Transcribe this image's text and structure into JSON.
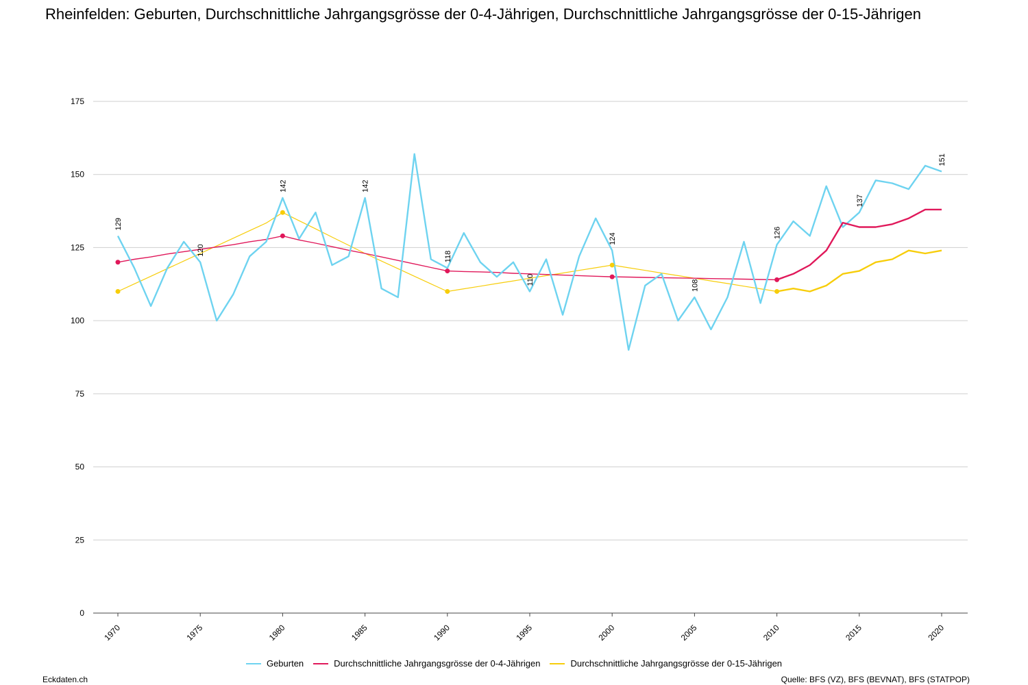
{
  "chart_data": {
    "type": "line",
    "title": "Rheinfelden: Geburten, Durchschnittliche Jahrgangsgrösse der 0-4-Jährigen, Durchschnittliche Jahrgangsgrösse der 0-15-Jährigen",
    "xlabel": "",
    "ylabel": "",
    "ylim": [
      0,
      175
    ],
    "yticks": [
      0,
      25,
      50,
      75,
      100,
      125,
      150,
      175
    ],
    "xticks": [
      1970,
      1975,
      1980,
      1985,
      1990,
      1995,
      2000,
      2005,
      2010,
      2015,
      2020
    ],
    "xlim": [
      1970,
      2020
    ],
    "grid": true,
    "legend_position": "bottom",
    "x": [
      1970,
      1971,
      1972,
      1973,
      1974,
      1975,
      1976,
      1977,
      1978,
      1979,
      1980,
      1981,
      1982,
      1983,
      1984,
      1985,
      1986,
      1987,
      1988,
      1989,
      1990,
      1991,
      1992,
      1993,
      1994,
      1995,
      1996,
      1997,
      1998,
      1999,
      2000,
      2001,
      2002,
      2003,
      2004,
      2005,
      2006,
      2007,
      2008,
      2009,
      2010,
      2011,
      2012,
      2013,
      2014,
      2015,
      2016,
      2017,
      2018,
      2019,
      2020
    ],
    "series": [
      {
        "name": "Geburten",
        "color": "#6ed3f0",
        "values": [
          129,
          118,
          105,
          118,
          127,
          120,
          100,
          109,
          122,
          127,
          142,
          128,
          137,
          119,
          122,
          142,
          111,
          108,
          157,
          121,
          118,
          130,
          120,
          115,
          120,
          110,
          121,
          102,
          122,
          135,
          124,
          90,
          112,
          116,
          100,
          108,
          97,
          108,
          127,
          106,
          126,
          134,
          129,
          146,
          132,
          137,
          148,
          147,
          145,
          153,
          151
        ],
        "labels": [
          {
            "x": 1970,
            "text": "129"
          },
          {
            "x": 1975,
            "text": "120"
          },
          {
            "x": 1980,
            "text": "142"
          },
          {
            "x": 1985,
            "text": "142"
          },
          {
            "x": 1990,
            "text": "118"
          },
          {
            "x": 1995,
            "text": "110"
          },
          {
            "x": 2000,
            "text": "124"
          },
          {
            "x": 2005,
            "text": "108"
          },
          {
            "x": 2010,
            "text": "126"
          },
          {
            "x": 2015,
            "text": "137"
          },
          {
            "x": 2020,
            "text": "151"
          }
        ]
      },
      {
        "name": "Durchschnittliche Jahrgangsgrösse der 0-4-Jährigen",
        "color": "#e0185a",
        "values": [
          120,
          121,
          121.8,
          122.8,
          123.6,
          124.4,
          125.2,
          126,
          127,
          127.8,
          129,
          127.6,
          126.5,
          125.3,
          124.1,
          123,
          121.8,
          120.6,
          119.4,
          118.2,
          117,
          116.8,
          116.7,
          116.5,
          116.2,
          116,
          115.8,
          115.6,
          115.4,
          115.2,
          115,
          114.9,
          114.8,
          114.7,
          114.6,
          114.5,
          114.4,
          114.3,
          114.2,
          114.1,
          114,
          116,
          119,
          124,
          133.5,
          132,
          132,
          133,
          135,
          138,
          138
        ],
        "markers": [
          1970,
          1980,
          1990,
          2000,
          2010
        ]
      },
      {
        "name": "Durchschnittliche Jahrgangsgrösse der 0-15-Jährigen",
        "color": "#f7cd0a",
        "values": [
          110,
          112.6,
          115.2,
          117.8,
          120.4,
          123,
          125.6,
          128.2,
          130.8,
          133.4,
          137,
          134.2,
          131.4,
          128.6,
          125.8,
          123,
          120.4,
          117.8,
          115.2,
          112.6,
          110,
          110.9,
          111.8,
          112.7,
          113.6,
          114.5,
          115.4,
          116.3,
          117.2,
          118.1,
          119,
          118.1,
          117.2,
          116.3,
          115.4,
          114.5,
          113.6,
          112.7,
          111.8,
          110.9,
          110,
          111,
          110,
          112,
          116,
          117,
          120,
          121,
          124,
          123,
          124
        ],
        "markers": [
          1970,
          1980,
          1990,
          2000,
          2010
        ]
      }
    ]
  },
  "footer": {
    "left": "Eckdaten.ch",
    "right": "Quelle: BFS (VZ), BFS (BEVNAT), BFS (STATPOP)"
  }
}
